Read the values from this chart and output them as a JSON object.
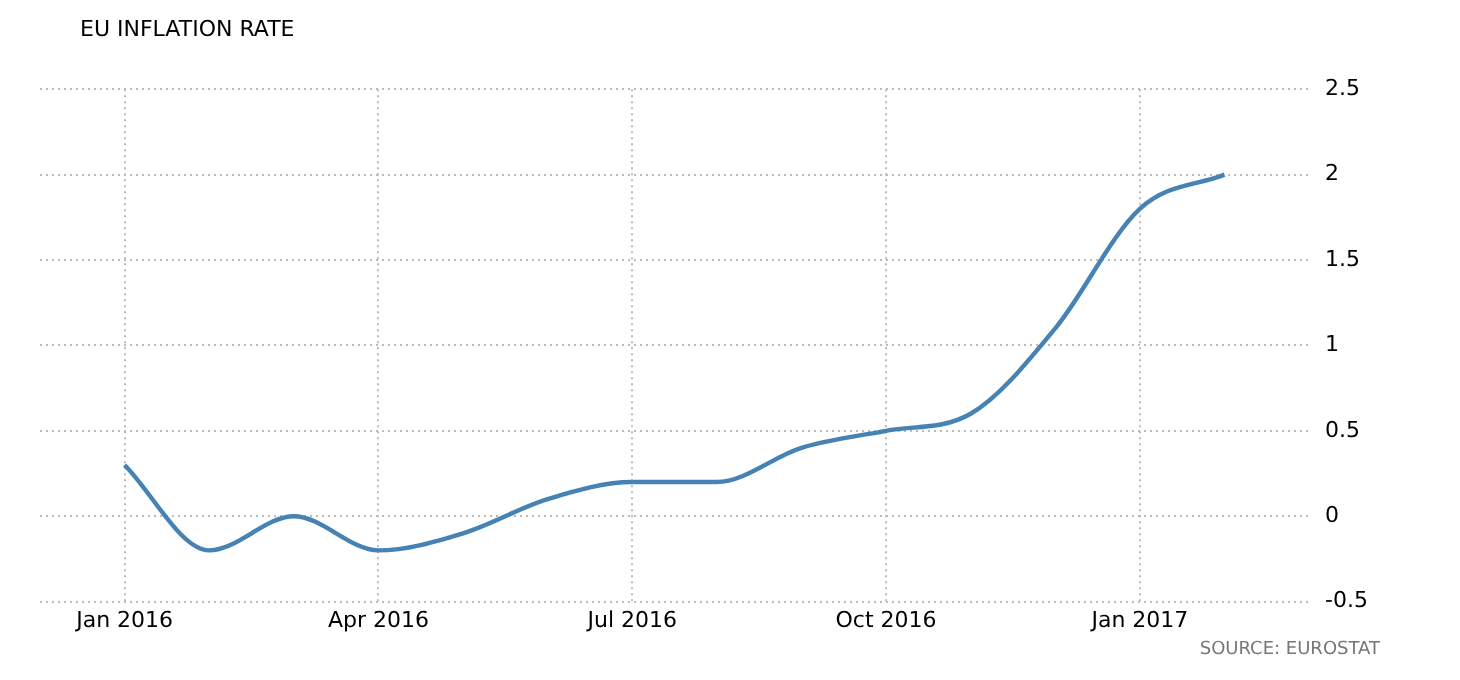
{
  "chart_data": {
    "type": "line",
    "title": "EU INFLATION RATE",
    "categories": [
      "Jan 2016",
      null,
      null,
      "Apr 2016",
      null,
      null,
      "Jul 2016",
      null,
      null,
      "Oct 2016",
      null,
      null,
      "Jan 2017",
      null
    ],
    "series": [
      {
        "color": "#4682b4",
        "values": [
          0.3,
          -0.2,
          0,
          -0.2,
          -0.1,
          0.1,
          0.2,
          0.2,
          0.4,
          0.5,
          0.6,
          1.1,
          1.8,
          2.0
        ]
      }
    ],
    "ylim": [
      -0.5,
      2.5
    ],
    "yticks": [
      -0.5,
      0,
      0.5,
      1,
      1.5,
      2,
      2.5
    ],
    "grid": true,
    "legend": false,
    "marker": "none",
    "line_style": "solid",
    "annotations": [
      "SOURCE: EUROSTAT"
    ]
  }
}
